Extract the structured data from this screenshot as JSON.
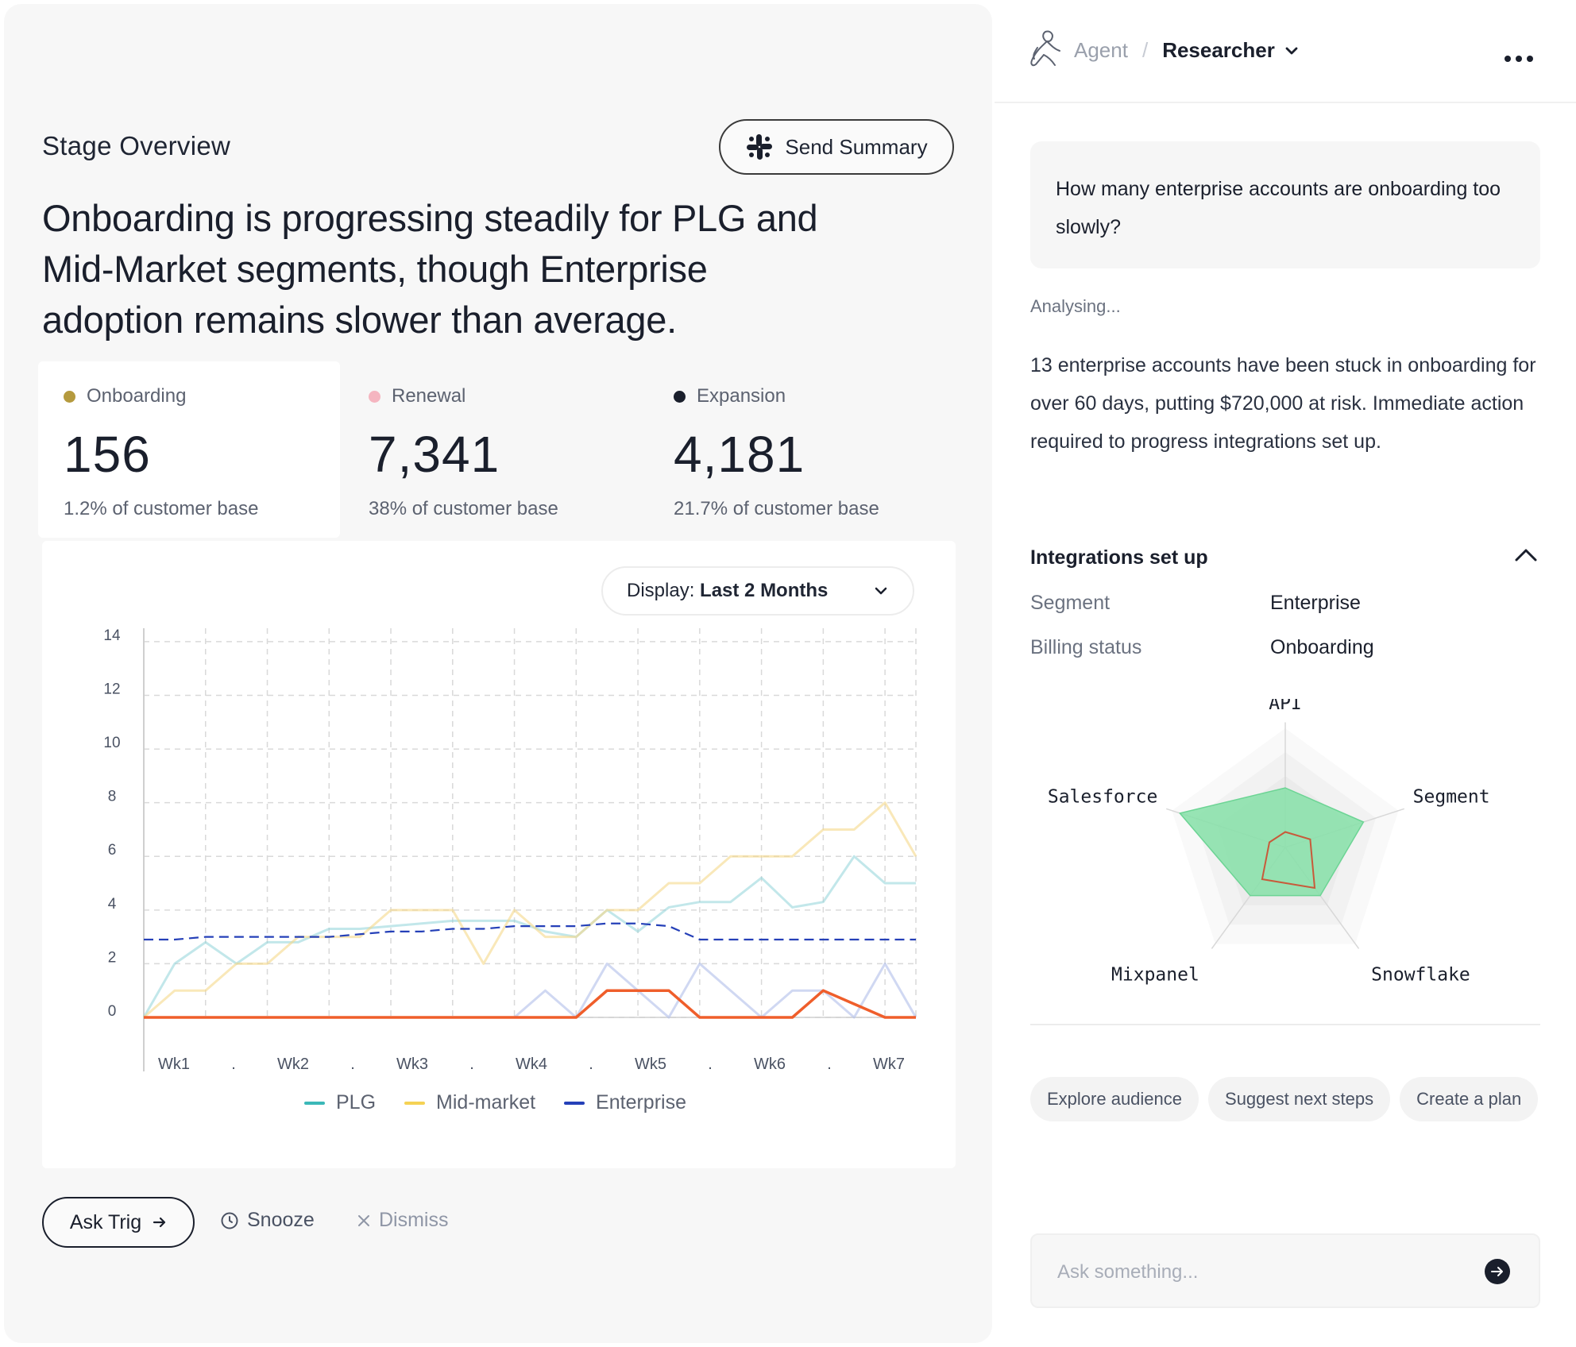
{
  "overview": {
    "title": "Stage Overview",
    "send_summary_label": "Send Summary",
    "headline": "Onboarding is progressing steadily for PLG and Mid-Market segments, though Enterprise adoption remains slower than average.",
    "stats": [
      {
        "label": "Onboarding",
        "value": "156",
        "sub": "1.2% of customer base",
        "color": "#b59a3e"
      },
      {
        "label": "Renewal",
        "value": "7,341",
        "sub": "38% of customer base",
        "color": "#f5b5c0"
      },
      {
        "label": "Expansion",
        "value": "4,181",
        "sub": "21.7% of customer base",
        "color": "#1a1f2c"
      }
    ]
  },
  "display": {
    "prefix": "Display:",
    "value": "Last 2 Months"
  },
  "actions": {
    "ask": "Ask Trig",
    "snooze": "Snooze",
    "dismiss": "Dismiss"
  },
  "chart_data": [
    {
      "type": "line",
      "y_ticks": [
        0,
        2,
        4,
        6,
        8,
        10,
        12,
        14
      ],
      "ylim": [
        0,
        14.5
      ],
      "x_ticks": [
        "Wk1",
        ".",
        "Wk2",
        ".",
        "Wk3",
        ".",
        "Wk4",
        ".",
        "Wk5",
        ".",
        "Wk6",
        ".",
        "Wk7"
      ],
      "x": [
        0,
        0.5,
        1,
        1.5,
        2,
        2.5,
        3,
        3.5,
        4,
        4.5,
        5,
        5.5,
        6,
        6.5,
        7,
        7.5,
        8,
        8.5,
        9,
        9.5,
        10,
        10.5,
        11,
        11.5,
        12,
        12.5
      ],
      "grid": true,
      "legend_position": "bottom",
      "series": [
        {
          "name": "PLG",
          "color": "#8fd4d8",
          "opacity": 0.55,
          "style": "solid",
          "values": [
            0,
            2,
            2.8,
            2,
            2.8,
            2.8,
            3.3,
            3.3,
            3.4,
            3.5,
            3.6,
            3.6,
            3.6,
            3.2,
            3,
            4,
            3.2,
            4.1,
            4.3,
            4.3,
            5.2,
            4.1,
            4.3,
            6,
            5,
            5
          ]
        },
        {
          "name": "Mid-market",
          "color": "#f5d98a",
          "opacity": 0.6,
          "style": "solid",
          "values": [
            0,
            1,
            1,
            2,
            2,
            3,
            3,
            3,
            4,
            4,
            4,
            2,
            4,
            3,
            3,
            4,
            4,
            5,
            5,
            6,
            6,
            6,
            7,
            7,
            8,
            6
          ]
        },
        {
          "name": "Enterprise",
          "color": "#2540b8",
          "opacity": 1,
          "style": "dashed",
          "values": [
            2.9,
            2.9,
            3,
            3,
            3,
            3,
            3,
            3.1,
            3.2,
            3.2,
            3.3,
            3.3,
            3.4,
            3.4,
            3.4,
            3.5,
            3.5,
            3.4,
            2.9,
            2.9,
            2.9,
            2.9,
            2.9,
            2.9,
            2.9,
            2.9
          ]
        },
        {
          "name": "",
          "color": "#aab8e8",
          "opacity": 0.55,
          "style": "solid",
          "values": [
            0,
            0,
            0,
            0,
            0,
            0,
            0,
            0,
            0,
            0,
            0,
            0,
            0,
            1,
            0,
            2,
            1,
            0,
            2,
            1,
            0,
            1,
            1,
            0,
            2,
            0
          ]
        },
        {
          "name": "",
          "color": "#ef5e2b",
          "opacity": 1,
          "style": "solid",
          "values": [
            0,
            0,
            0,
            0,
            0,
            0,
            0,
            0,
            0,
            0,
            0,
            0,
            0,
            0,
            0,
            1,
            1,
            1,
            0,
            0,
            0,
            0,
            1,
            0.5,
            0,
            0
          ]
        }
      ],
      "legend": [
        "PLG",
        "Mid-market",
        "Enterprise"
      ]
    },
    {
      "type": "radar",
      "axes": [
        "API",
        "Segment",
        "Snowflake",
        "Mixpanel",
        "Salesforce"
      ],
      "range": [
        0,
        1
      ],
      "series": [
        {
          "color": "#86e0a8",
          "fill": true,
          "values": [
            0.5,
            0.69,
            0.5,
            0.5,
            0.93
          ]
        },
        {
          "color": "#c85a3a",
          "fill": false,
          "values": [
            0.13,
            0.22,
            0.42,
            0.33,
            0.14
          ]
        }
      ]
    }
  ],
  "agent": {
    "crumb_agent": "Agent",
    "crumb_sep": "/",
    "crumb_researcher": "Researcher",
    "question": "How many enterprise accounts are onboarding too slowly?",
    "status": "Analysing...",
    "answer": "13 enterprise accounts have been stuck in onboarding for over 60 days, putting $720,000 at risk. Immediate action required to progress integrations set up.",
    "section_title": "Integrations set up",
    "details": [
      {
        "key": "Segment",
        "value": "Enterprise"
      },
      {
        "key": "Billing status",
        "value": "Onboarding"
      }
    ],
    "chips": [
      "Explore audience",
      "Suggest next steps",
      "Create a plan"
    ],
    "input_placeholder": "Ask something..."
  }
}
